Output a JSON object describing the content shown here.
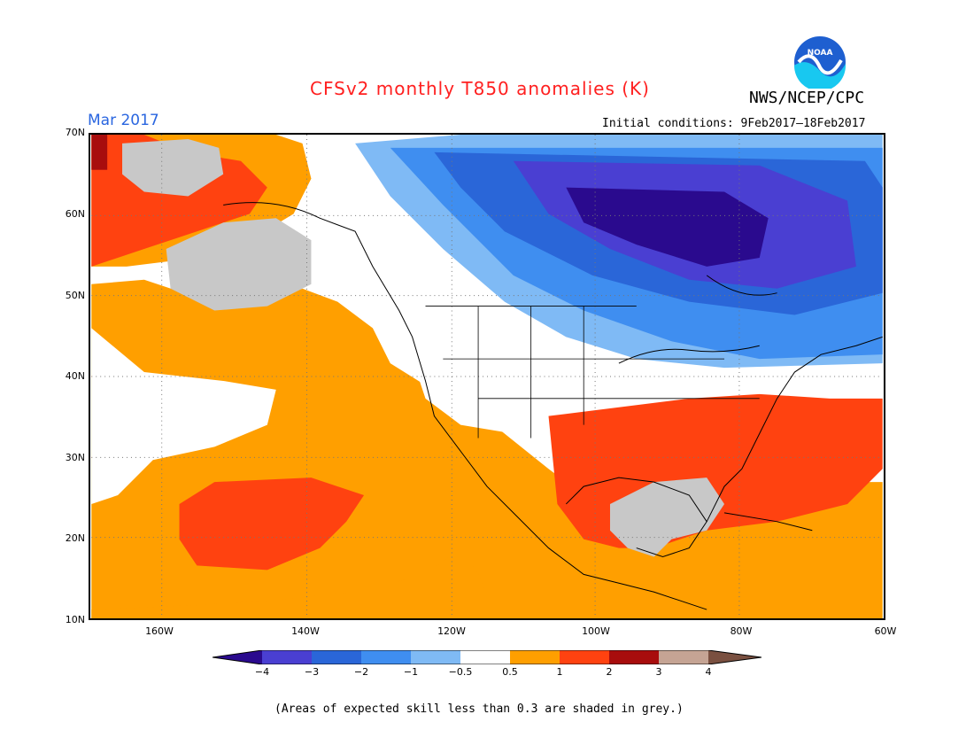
{
  "title": "CFSv2 monthly T850 anomalies (K)",
  "month": "Mar 2017",
  "initial_conditions": "Initial conditions: 9Feb2017–18Feb2017",
  "agency": "NWS/NCEP/CPC",
  "logo": {
    "text": "NOAA",
    "icon": "noaa-logo-icon"
  },
  "lat_labels": [
    "70N",
    "60N",
    "50N",
    "40N",
    "30N",
    "20N",
    "10N"
  ],
  "lon_labels": [
    "160W",
    "140W",
    "120W",
    "100W",
    "80W",
    "60W"
  ],
  "colorbar": {
    "labels": [
      "−4",
      "−3",
      "−2",
      "−1",
      "−0.5",
      "0.5",
      "1",
      "2",
      "3",
      "4"
    ],
    "colors": [
      "#2a0a8e",
      "#4a3fd2",
      "#2a66d8",
      "#3f8ef0",
      "#7fbaf5",
      "#ffffff",
      "#ff9f00",
      "#ff4210",
      "#a80d0d",
      "#c5a494",
      "#7a5040"
    ]
  },
  "palette": {
    "neg4": "#2a0a8e",
    "neg3": "#4a3fd2",
    "neg2": "#2a66d8",
    "neg1": "#3f8ef0",
    "neg05": "#7fbaf5",
    "pos05": "#ff9f00",
    "pos1": "#ff4210",
    "pos2": "#a80d0d",
    "grey": "#c8c8c8"
  },
  "note": "(Areas of expected skill less than 0.3 are shaded in grey.)"
}
